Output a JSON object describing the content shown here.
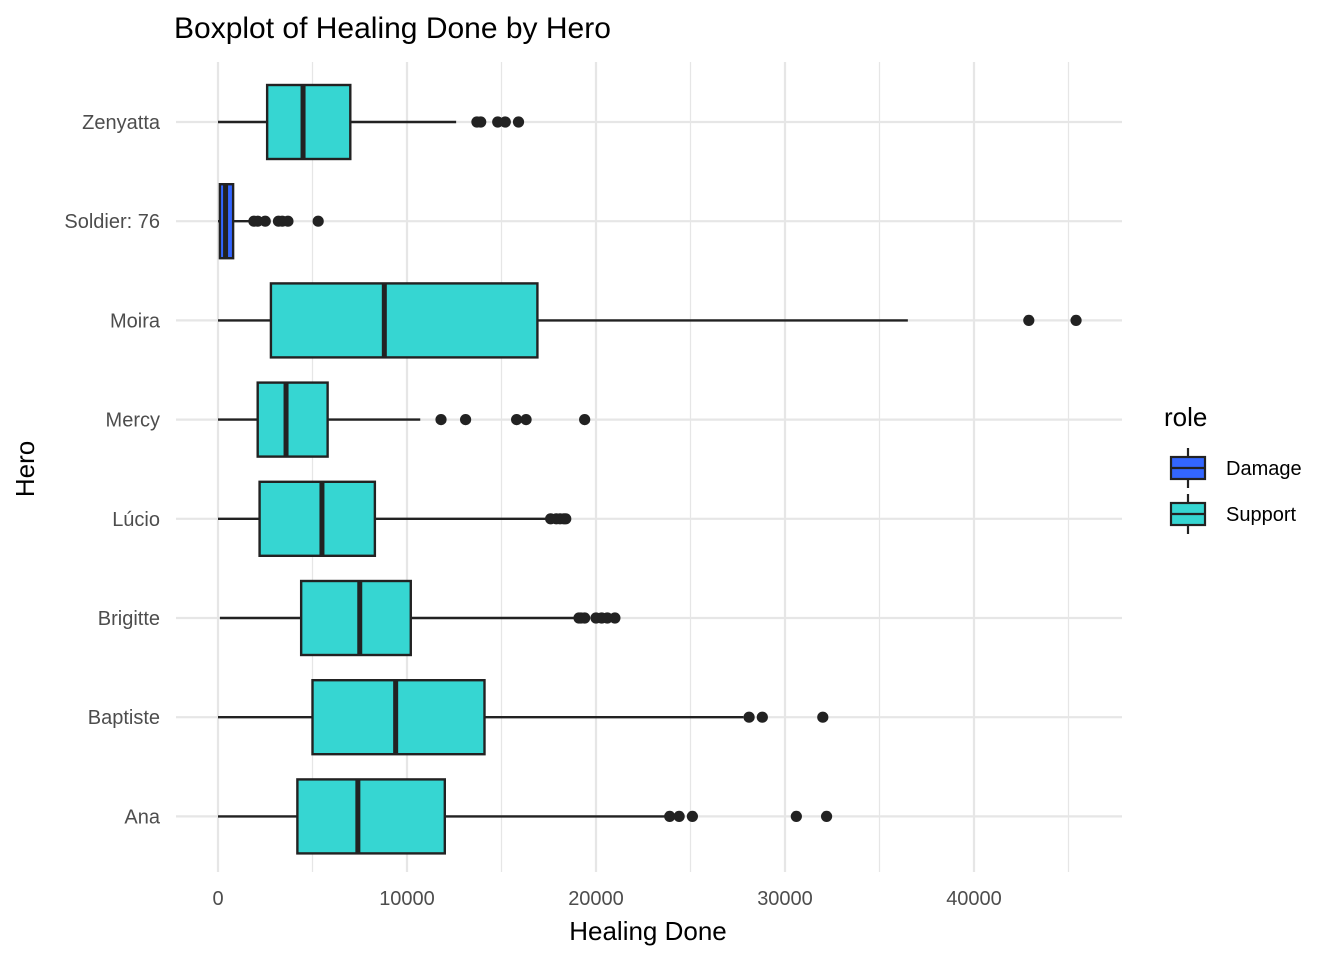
{
  "chart_data": {
    "type": "boxplot",
    "orientation": "horizontal",
    "title": "Boxplot of Healing Done by Hero",
    "xlabel": "Healing Done",
    "ylabel": "Hero",
    "xlim": [
      -1800,
      47600
    ],
    "x_ticks": [
      0,
      10000,
      20000,
      30000,
      40000
    ],
    "x_tick_labels": [
      "0",
      "10000",
      "20000",
      "30000",
      "40000"
    ],
    "grid": true,
    "legend": {
      "title": "role",
      "placement": "right",
      "entries": [
        {
          "label": "Damage",
          "color": "#3366ff"
        },
        {
          "label": "Support",
          "color": "#36d6d2"
        }
      ]
    },
    "colors": {
      "Damage": "#3366ff",
      "Support": "#36d6d2",
      "line": "#222222",
      "grid": "#e6e6e6"
    },
    "categories": [
      "Ana",
      "Baptiste",
      "Brigitte",
      "Lúcio",
      "Mercy",
      "Moira",
      "Soldier: 76",
      "Zenyatta"
    ],
    "boxes": [
      {
        "hero": "Ana",
        "role": "Support",
        "whisker_low": 0,
        "q1": 4200,
        "median": 7400,
        "q3": 12000,
        "whisker_high": 23700,
        "outliers": [
          23900,
          24400,
          25100,
          30600,
          32200
        ]
      },
      {
        "hero": "Baptiste",
        "role": "Support",
        "whisker_low": 0,
        "q1": 5000,
        "median": 9400,
        "q3": 14100,
        "whisker_high": 27800,
        "outliers": [
          28100,
          28800,
          32000
        ]
      },
      {
        "hero": "Brigitte",
        "role": "Support",
        "whisker_low": 100,
        "q1": 4400,
        "median": 7500,
        "q3": 10200,
        "whisker_high": 18900,
        "outliers": [
          19100,
          19200,
          19400,
          20000,
          20300,
          20600,
          21000
        ]
      },
      {
        "hero": "Lúcio",
        "role": "Support",
        "whisker_low": 0,
        "q1": 2200,
        "median": 5500,
        "q3": 8300,
        "whisker_high": 17400,
        "outliers": [
          17600,
          17900,
          18100,
          18300,
          18400
        ]
      },
      {
        "hero": "Mercy",
        "role": "Support",
        "whisker_low": 0,
        "q1": 2100,
        "median": 3600,
        "q3": 5800,
        "whisker_high": 10700,
        "outliers": [
          11800,
          13100,
          15800,
          16300,
          19400
        ]
      },
      {
        "hero": "Moira",
        "role": "Support",
        "whisker_low": 0,
        "q1": 2800,
        "median": 8800,
        "q3": 16900,
        "whisker_high": 36500,
        "outliers": [
          42900,
          45400
        ]
      },
      {
        "hero": "Soldier: 76",
        "role": "Damage",
        "whisker_low": 0,
        "q1": 100,
        "median": 400,
        "q3": 800,
        "whisker_high": 1700,
        "outliers": [
          1900,
          2100,
          2500,
          3200,
          3400,
          3700,
          5300
        ]
      },
      {
        "hero": "Zenyatta",
        "role": "Support",
        "whisker_low": 0,
        "q1": 2600,
        "median": 4500,
        "q3": 7000,
        "whisker_high": 12600,
        "outliers": [
          13700,
          13900,
          14800,
          15200,
          15900
        ]
      }
    ]
  }
}
